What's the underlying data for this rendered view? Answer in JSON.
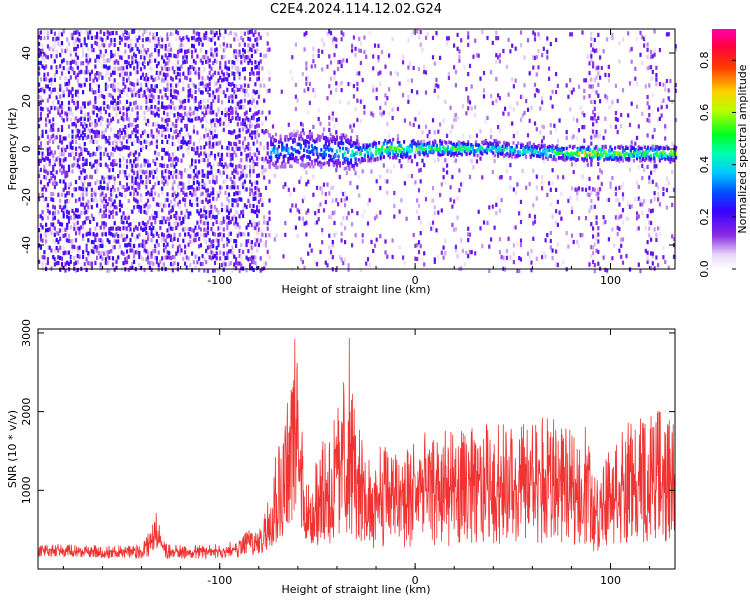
{
  "title": "C2E4.2024.114.12.02.G24",
  "chart_data": [
    {
      "type": "heatmap",
      "xlabel": "Height of straight line (km)",
      "ylabel": "Frequency (Hz)",
      "xlim": [
        -193,
        133
      ],
      "ylim": [
        -50,
        50
      ],
      "x_ticks": [
        -100,
        0,
        100
      ],
      "y_ticks": [
        -40,
        -20,
        0,
        20,
        40
      ],
      "colorbar": {
        "label": "Normalized spectral amplitude",
        "range": [
          0.0,
          0.92
        ],
        "ticks": [
          0.0,
          0.2,
          0.4,
          0.6,
          0.8
        ]
      },
      "ridge": [
        {
          "x": -70,
          "y": -1,
          "amp": 0.4
        },
        {
          "x": -60,
          "y": 0,
          "amp": 0.4
        },
        {
          "x": -50,
          "y": -1,
          "amp": 0.42
        },
        {
          "x": -40,
          "y": -1,
          "amp": 0.45
        },
        {
          "x": -30,
          "y": -2,
          "amp": 0.52
        },
        {
          "x": -15,
          "y": 0,
          "amp": 0.72
        },
        {
          "x": 0,
          "y": 0,
          "amp": 0.62
        },
        {
          "x": 20,
          "y": 0,
          "amp": 0.66
        },
        {
          "x": 40,
          "y": 0,
          "amp": 0.52
        },
        {
          "x": 60,
          "y": -1,
          "amp": 0.55
        },
        {
          "x": 80,
          "y": -2,
          "amp": 0.68
        },
        {
          "x": 88,
          "y": -2,
          "amp": 0.86
        },
        {
          "x": 110,
          "y": -2,
          "amp": 0.6
        },
        {
          "x": 130,
          "y": -2,
          "amp": 0.7
        }
      ]
    },
    {
      "type": "line",
      "xlabel": "Height of straight line (km)",
      "ylabel": "SNR (10 * v/v)",
      "xlim": [
        -193,
        133
      ],
      "ylim": [
        0,
        3050
      ],
      "x_ticks": [
        -100,
        0,
        100
      ],
      "y_ticks": [
        1000,
        2000,
        3000
      ],
      "color": "#f03232",
      "envelope": {
        "x": [
          -193,
          -180,
          -150,
          -140,
          -134,
          -132,
          -128,
          -110,
          -90,
          -85,
          -82,
          -78,
          -72,
          -67,
          -64,
          -62,
          -60,
          -58,
          -55,
          -50,
          -45,
          -40,
          -35,
          -34,
          -30,
          -25,
          -20,
          -10,
          0,
          10,
          20,
          30,
          40,
          50,
          60,
          70,
          80,
          88,
          92,
          100,
          110,
          120,
          133
        ],
        "upper": [
          330,
          320,
          300,
          340,
          600,
          780,
          320,
          300,
          360,
          560,
          480,
          650,
          1500,
          2000,
          2700,
          3050,
          2700,
          1800,
          1100,
          1500,
          1800,
          2000,
          2850,
          3050,
          1900,
          1500,
          1600,
          1600,
          1700,
          1800,
          1750,
          1800,
          1900,
          1850,
          1900,
          1950,
          1750,
          1900,
          1200,
          1750,
          1900,
          2050,
          1950
        ],
        "lower": [
          150,
          150,
          130,
          130,
          160,
          200,
          130,
          130,
          140,
          180,
          150,
          200,
          300,
          400,
          450,
          500,
          450,
          350,
          250,
          250,
          300,
          300,
          400,
          450,
          350,
          280,
          250,
          260,
          270,
          280,
          280,
          300,
          320,
          310,
          320,
          330,
          300,
          320,
          200,
          300,
          320,
          340,
          330
        ]
      }
    }
  ]
}
